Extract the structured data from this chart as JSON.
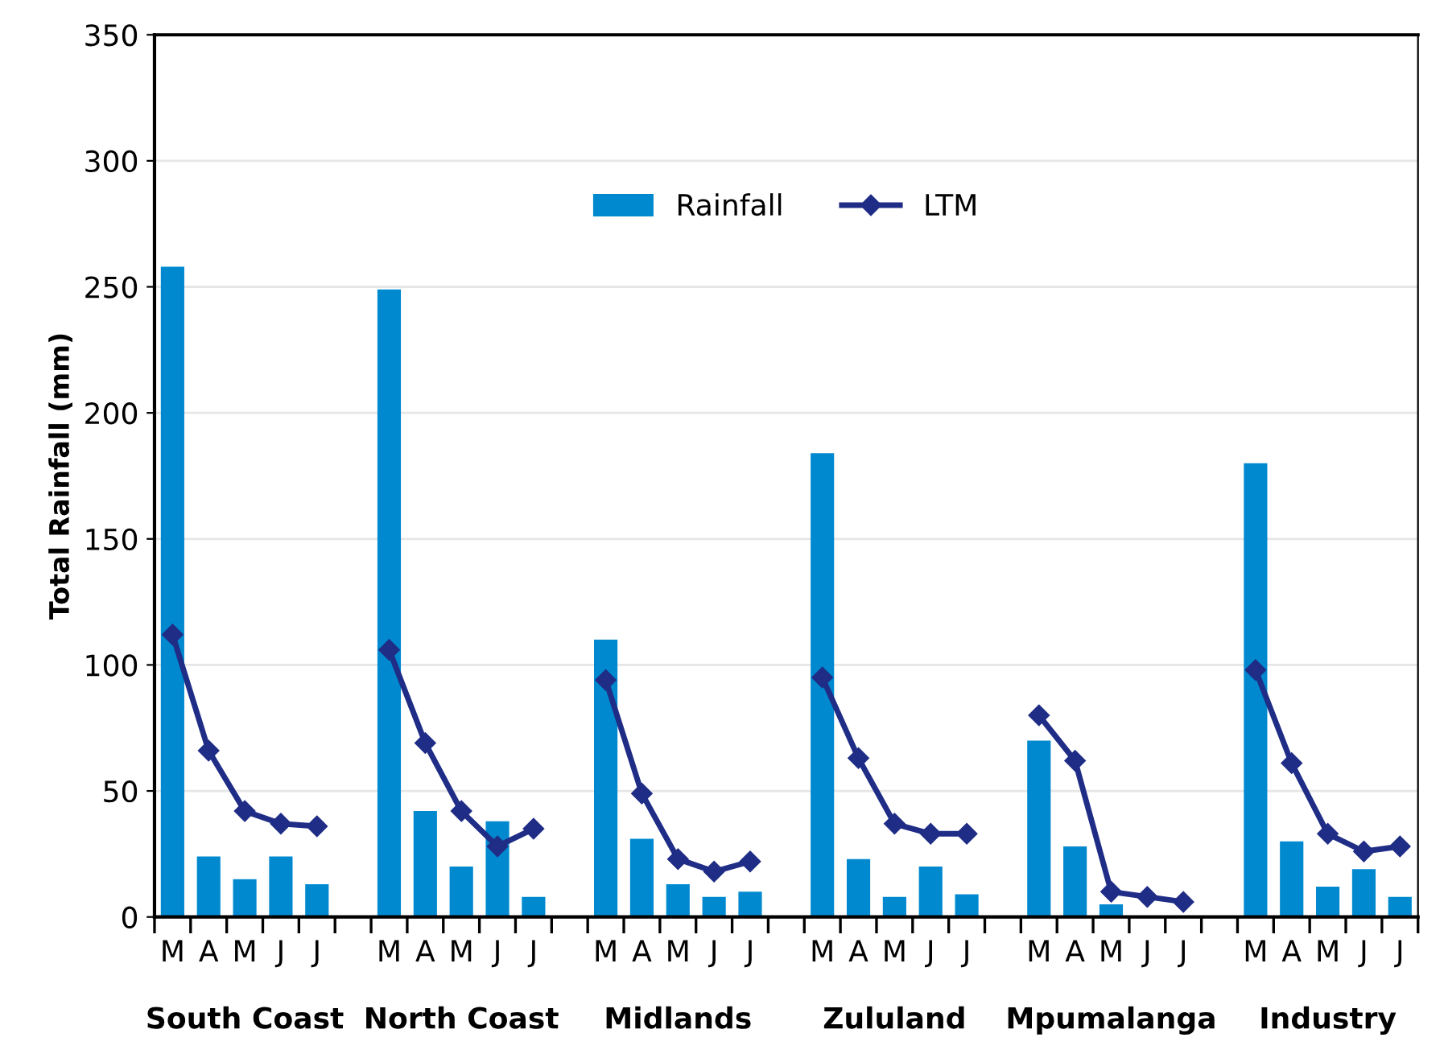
{
  "chart_data": {
    "type": "bar",
    "ylabel": "Total Rainfall (mm)",
    "categories": [
      "M",
      "A",
      "M",
      "J",
      "J",
      null,
      "M",
      "A",
      "M",
      "J",
      "J",
      null,
      "M",
      "A",
      "M",
      "J",
      "J",
      null,
      "M",
      "A",
      "M",
      "J",
      "J",
      null,
      "M",
      "A",
      "M",
      "J",
      "J",
      null,
      "M",
      "A",
      "M",
      "J",
      "J"
    ],
    "series": [
      {
        "name": "Rainfall",
        "color": "#0089cf",
        "values": [
          258,
          24,
          15,
          24,
          13,
          null,
          249,
          42,
          20,
          38,
          8,
          null,
          110,
          31,
          13,
          8,
          10,
          null,
          184,
          23,
          8,
          20,
          9,
          null,
          70,
          28,
          5,
          0,
          0,
          null,
          180,
          30,
          12,
          19,
          8
        ]
      },
      {
        "name": "LTM",
        "type": "line",
        "color": "#1f2d86",
        "marker": "diamond",
        "values": [
          112,
          66,
          42,
          37,
          36,
          null,
          106,
          69,
          42,
          28,
          35,
          null,
          94,
          49,
          23,
          18,
          22,
          null,
          95,
          63,
          37,
          33,
          33,
          null,
          80,
          62,
          10,
          8,
          6,
          null,
          98,
          61,
          33,
          26,
          28
        ]
      }
    ],
    "ylim": [
      0,
      350
    ],
    "yticks": [
      0,
      50,
      100,
      150,
      200,
      250,
      300,
      350
    ],
    "grid": "y",
    "legend": "top",
    "annotations": [
      "South Coast",
      "North Coast",
      "Midlands",
      "Zululand",
      "Mpumalanga",
      "Industry"
    ]
  }
}
